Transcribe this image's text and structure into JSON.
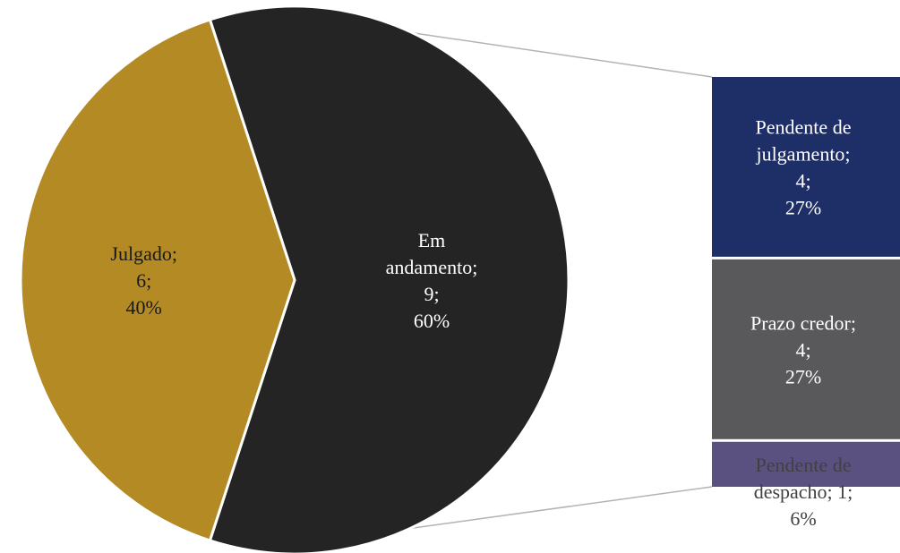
{
  "colors": {
    "Julgado": "#b38a24",
    "Em andamento": "#242424",
    "Pendente de julgamento": "#1e2e66",
    "Prazo credor": "#59585a",
    "Pendente de despacho": "#5b5180",
    "connector": "#b3b3b3",
    "label_light": "#ffffff",
    "label_dark": "#1a1a1a"
  },
  "chart_data": {
    "type": "bar-of-pie",
    "pie": {
      "slices": [
        {
          "name": "Julgado",
          "value": 6,
          "percent": "40%",
          "label_lines": [
            "Julgado;",
            "6;",
            "40%"
          ]
        },
        {
          "name": "Em andamento",
          "value": 9,
          "percent": "60%",
          "label_lines": [
            "Em",
            "andamento;",
            "9;",
            "60%"
          ]
        }
      ]
    },
    "bar": {
      "parent": "Em andamento",
      "segments": [
        {
          "name": "Pendente de julgamento",
          "value": 4,
          "percent": "27%",
          "label_lines": [
            "Pendente de",
            "julgamento;",
            "4;",
            "27%"
          ]
        },
        {
          "name": "Prazo credor",
          "value": 4,
          "percent": "27%",
          "label_lines": [
            "Prazo credor;",
            "4;",
            "27%"
          ]
        },
        {
          "name": "Pendente de despacho",
          "value": 1,
          "percent": "6%",
          "label_lines": [
            "Pendente de",
            "despacho; 1;",
            "6%"
          ]
        }
      ]
    },
    "legend": "none",
    "grid": false
  }
}
